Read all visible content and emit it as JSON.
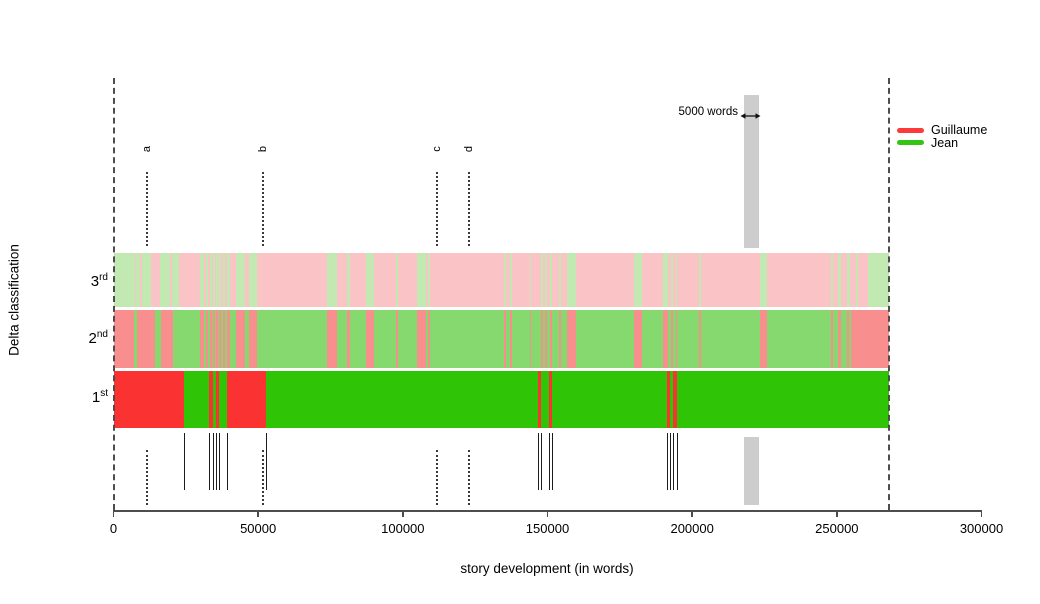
{
  "ui": {
    "y_axis_title": "Delta classification",
    "x_axis_title": "story development (in words)",
    "row_labels": [
      {
        "base": "3",
        "sup": "rd"
      },
      {
        "base": "2",
        "sup": "nd"
      },
      {
        "base": "1",
        "sup": "st"
      }
    ],
    "window_label": "5000 words",
    "legend": {
      "items": [
        {
          "label": "Guillaume",
          "color": "#fb3a3a"
        },
        {
          "label": "Jean",
          "color": "#35c413"
        }
      ]
    }
  },
  "colors": {
    "rank1": {
      "Guillaume": "#fb3232",
      "Jean": "#2fc506"
    },
    "rank2": {
      "Guillaume": "#f88e8e",
      "Jean": "#86d96f"
    },
    "rank3": {
      "Guillaume": "#fac3c6",
      "Jean": "#c2e9b1"
    },
    "window_bar": "#cdcdcd",
    "boundary_dash": "#4d4d4d",
    "axis": "#4d4d4d",
    "marker_dotted": "#3a3a3a",
    "rug": "#1c1c1c"
  },
  "chart_data": {
    "type": "heatmap",
    "title": "",
    "xlabel": "story development (in words)",
    "ylabel": "Delta classification",
    "xlim": [
      0,
      300000
    ],
    "x_ticks": [
      0,
      50000,
      100000,
      150000,
      200000,
      250000,
      300000
    ],
    "text_length_words": 268000,
    "window_words": 5000,
    "window_span": [
      218000,
      223000
    ],
    "legend_entries": [
      "Guillaume",
      "Jean"
    ],
    "author_codes": {
      "G": "Guillaume",
      "J": "Jean"
    },
    "markers": [
      {
        "label": "a",
        "x": 11600
      },
      {
        "label": "b",
        "x": 51500
      },
      {
        "label": "c",
        "x": 111700
      },
      {
        "label": "d",
        "x": 123000
      }
    ],
    "rug_x": [
      24300,
      32900,
      34300,
      35500,
      36600,
      39100,
      52700,
      146700,
      147700,
      150400,
      151600,
      191300,
      192400,
      193500,
      194900
    ],
    "rows": [
      {
        "rank": "1st",
        "segments": [
          [
            0,
            24300,
            "G"
          ],
          [
            24300,
            32900,
            "J"
          ],
          [
            32900,
            34300,
            "G"
          ],
          [
            34300,
            35500,
            "J"
          ],
          [
            35500,
            36600,
            "G"
          ],
          [
            36600,
            39100,
            "J"
          ],
          [
            39100,
            52700,
            "G"
          ],
          [
            52700,
            146700,
            "J"
          ],
          [
            146700,
            147700,
            "G"
          ],
          [
            147700,
            150400,
            "J"
          ],
          [
            150400,
            151600,
            "G"
          ],
          [
            151600,
            191300,
            "J"
          ],
          [
            191300,
            192400,
            "G"
          ],
          [
            192400,
            193500,
            "J"
          ],
          [
            193500,
            194900,
            "G"
          ],
          [
            194900,
            268000,
            "J"
          ]
        ]
      },
      {
        "rank": "2nd",
        "segments": [
          [
            0,
            7000,
            "G"
          ],
          [
            7000,
            8200,
            "J"
          ],
          [
            8200,
            14300,
            "G"
          ],
          [
            14300,
            16500,
            "J"
          ],
          [
            16500,
            20600,
            "G"
          ],
          [
            20600,
            29800,
            "J"
          ],
          [
            29800,
            31200,
            "G"
          ],
          [
            31200,
            31800,
            "J"
          ],
          [
            31800,
            32600,
            "G"
          ],
          [
            32600,
            33300,
            "J"
          ],
          [
            33300,
            34000,
            "G"
          ],
          [
            34000,
            34400,
            "J"
          ],
          [
            34400,
            35000,
            "G"
          ],
          [
            35000,
            35500,
            "J"
          ],
          [
            35500,
            36200,
            "G"
          ],
          [
            36200,
            36600,
            "J"
          ],
          [
            36600,
            37200,
            "G"
          ],
          [
            37200,
            37700,
            "J"
          ],
          [
            37700,
            38400,
            "G"
          ],
          [
            38400,
            39100,
            "J"
          ],
          [
            39100,
            40400,
            "G"
          ],
          [
            40400,
            42200,
            "J"
          ],
          [
            42200,
            45600,
            "G"
          ],
          [
            45600,
            46800,
            "J"
          ],
          [
            46800,
            49700,
            "G"
          ],
          [
            49700,
            73900,
            "J"
          ],
          [
            73900,
            77300,
            "G"
          ],
          [
            77300,
            80800,
            "J"
          ],
          [
            80800,
            81700,
            "G"
          ],
          [
            81700,
            87100,
            "J"
          ],
          [
            87100,
            90000,
            "G"
          ],
          [
            90000,
            97500,
            "J"
          ],
          [
            97500,
            98300,
            "G"
          ],
          [
            98300,
            105000,
            "J"
          ],
          [
            105000,
            107900,
            "G"
          ],
          [
            107900,
            108800,
            "J"
          ],
          [
            108800,
            109400,
            "G"
          ],
          [
            109400,
            135000,
            "J"
          ],
          [
            135000,
            135600,
            "G"
          ],
          [
            135600,
            137200,
            "J"
          ],
          [
            137200,
            137700,
            "G"
          ],
          [
            137700,
            143900,
            "J"
          ],
          [
            143900,
            144400,
            "G"
          ],
          [
            144400,
            147600,
            "J"
          ],
          [
            147600,
            148300,
            "G"
          ],
          [
            148300,
            149300,
            "J"
          ],
          [
            149300,
            149900,
            "G"
          ],
          [
            149900,
            150800,
            "J"
          ],
          [
            150800,
            151400,
            "G"
          ],
          [
            151400,
            153900,
            "J"
          ],
          [
            153900,
            154500,
            "G"
          ],
          [
            154500,
            156800,
            "J"
          ],
          [
            156800,
            160000,
            "G"
          ],
          [
            160000,
            179900,
            "J"
          ],
          [
            179900,
            182700,
            "G"
          ],
          [
            182700,
            190000,
            "J"
          ],
          [
            190000,
            191600,
            "G"
          ],
          [
            191600,
            192800,
            "J"
          ],
          [
            192800,
            193400,
            "G"
          ],
          [
            193400,
            194300,
            "J"
          ],
          [
            194300,
            194900,
            "G"
          ],
          [
            194900,
            202400,
            "J"
          ],
          [
            202400,
            202900,
            "G"
          ],
          [
            202900,
            223400,
            "J"
          ],
          [
            223400,
            226000,
            "G"
          ],
          [
            226000,
            248100,
            "J"
          ],
          [
            248100,
            248600,
            "G"
          ],
          [
            248600,
            250400,
            "J"
          ],
          [
            250400,
            251500,
            "G"
          ],
          [
            251500,
            253600,
            "J"
          ],
          [
            253600,
            254200,
            "G"
          ],
          [
            254200,
            255000,
            "J"
          ],
          [
            255000,
            268000,
            "G"
          ]
        ]
      },
      {
        "rank": "3rd",
        "segments": [
          [
            0,
            7300,
            "J"
          ],
          [
            7300,
            7700,
            "G"
          ],
          [
            7700,
            9300,
            "J"
          ],
          [
            9300,
            9800,
            "G"
          ],
          [
            9800,
            13000,
            "J"
          ],
          [
            13000,
            16200,
            "G"
          ],
          [
            16200,
            19500,
            "J"
          ],
          [
            19500,
            20300,
            "G"
          ],
          [
            20300,
            22800,
            "J"
          ],
          [
            22800,
            29800,
            "G"
          ],
          [
            29800,
            31200,
            "J"
          ],
          [
            31200,
            31800,
            "G"
          ],
          [
            31800,
            32600,
            "J"
          ],
          [
            32600,
            33300,
            "G"
          ],
          [
            33300,
            34000,
            "J"
          ],
          [
            34000,
            34400,
            "G"
          ],
          [
            34400,
            35000,
            "J"
          ],
          [
            35000,
            35500,
            "G"
          ],
          [
            35500,
            36200,
            "J"
          ],
          [
            36200,
            36600,
            "G"
          ],
          [
            36600,
            37200,
            "J"
          ],
          [
            37200,
            37700,
            "G"
          ],
          [
            37700,
            38400,
            "J"
          ],
          [
            38400,
            39100,
            "G"
          ],
          [
            39100,
            40400,
            "J"
          ],
          [
            40400,
            42200,
            "G"
          ],
          [
            42200,
            45600,
            "J"
          ],
          [
            45600,
            46800,
            "G"
          ],
          [
            46800,
            49700,
            "J"
          ],
          [
            49700,
            73900,
            "G"
          ],
          [
            73900,
            77300,
            "J"
          ],
          [
            77300,
            80800,
            "G"
          ],
          [
            80800,
            81700,
            "J"
          ],
          [
            81700,
            87100,
            "G"
          ],
          [
            87100,
            90000,
            "J"
          ],
          [
            90000,
            97500,
            "G"
          ],
          [
            97500,
            98300,
            "J"
          ],
          [
            98300,
            105000,
            "G"
          ],
          [
            105000,
            107900,
            "J"
          ],
          [
            107900,
            108800,
            "G"
          ],
          [
            108800,
            109400,
            "J"
          ],
          [
            109400,
            135000,
            "G"
          ],
          [
            135000,
            135600,
            "J"
          ],
          [
            135600,
            137200,
            "G"
          ],
          [
            137200,
            137700,
            "J"
          ],
          [
            137700,
            143900,
            "G"
          ],
          [
            143900,
            144400,
            "J"
          ],
          [
            144400,
            147600,
            "G"
          ],
          [
            147600,
            148300,
            "J"
          ],
          [
            148300,
            149300,
            "G"
          ],
          [
            149300,
            149900,
            "J"
          ],
          [
            149900,
            150800,
            "G"
          ],
          [
            150800,
            151400,
            "J"
          ],
          [
            151400,
            153900,
            "G"
          ],
          [
            153900,
            154500,
            "J"
          ],
          [
            154500,
            156800,
            "G"
          ],
          [
            156800,
            160000,
            "J"
          ],
          [
            160000,
            179900,
            "G"
          ],
          [
            179900,
            182700,
            "J"
          ],
          [
            182700,
            190000,
            "G"
          ],
          [
            190000,
            191600,
            "J"
          ],
          [
            191600,
            192800,
            "G"
          ],
          [
            192800,
            193400,
            "J"
          ],
          [
            193400,
            194300,
            "G"
          ],
          [
            194300,
            194900,
            "J"
          ],
          [
            194900,
            202400,
            "G"
          ],
          [
            202400,
            202900,
            "J"
          ],
          [
            202900,
            223400,
            "G"
          ],
          [
            223400,
            226000,
            "J"
          ],
          [
            226000,
            248100,
            "G"
          ],
          [
            248100,
            248600,
            "J"
          ],
          [
            248600,
            250400,
            "G"
          ],
          [
            250400,
            251500,
            "J"
          ],
          [
            251500,
            253600,
            "G"
          ],
          [
            253600,
            254500,
            "J"
          ],
          [
            254500,
            256500,
            "G"
          ],
          [
            256500,
            257400,
            "J"
          ],
          [
            257400,
            260800,
            "G"
          ],
          [
            260800,
            268000,
            "J"
          ]
        ]
      }
    ]
  }
}
